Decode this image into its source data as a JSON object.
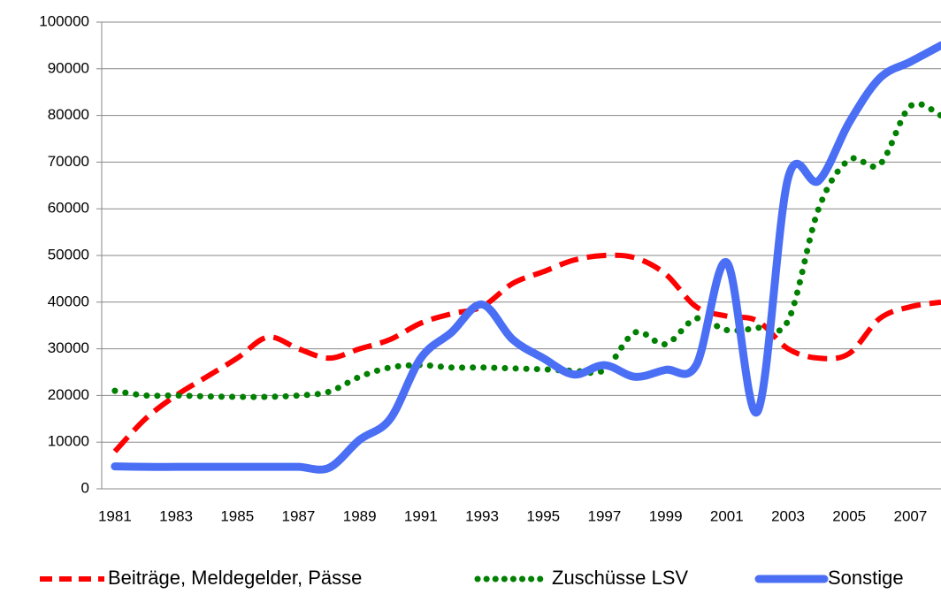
{
  "chart_data": {
    "type": "line",
    "x": [
      1981,
      1982,
      1983,
      1984,
      1985,
      1986,
      1987,
      1988,
      1989,
      1990,
      1991,
      1992,
      1993,
      1994,
      1995,
      1996,
      1997,
      1998,
      1999,
      2000,
      2001,
      2002,
      2003,
      2004,
      2005,
      2006,
      2007,
      2008
    ],
    "xlim": [
      1980.57,
      2008.0
    ],
    "xticks": [
      1981,
      1983,
      1985,
      1987,
      1989,
      1991,
      1993,
      1995,
      1997,
      1999,
      2001,
      2003,
      2005,
      2007
    ],
    "ylim": [
      0,
      100000
    ],
    "yticks": [
      0,
      10000,
      20000,
      30000,
      40000,
      50000,
      60000,
      70000,
      80000,
      90000,
      100000
    ],
    "grid": true,
    "legend": "bottom",
    "series": [
      {
        "name": "Beiträge, Meldegelder, Pässe",
        "color": "#ff0000",
        "style": "dashed",
        "values": [
          8000,
          15000,
          20000,
          24000,
          28000,
          32500,
          30000,
          28000,
          30000,
          32000,
          35500,
          37500,
          39000,
          44000,
          46500,
          49000,
          50000,
          49500,
          46000,
          39000,
          37000,
          36000,
          30000,
          28000,
          29000,
          36500,
          39000,
          40000
        ]
      },
      {
        "name": "Zuschüsse LSV",
        "color": "#008000",
        "style": "dotted",
        "values": [
          21000,
          20000,
          20000,
          19800,
          19700,
          19700,
          20000,
          20800,
          24000,
          26000,
          26500,
          26000,
          26000,
          25800,
          25600,
          25300,
          25500,
          33500,
          31000,
          36500,
          34000,
          34500,
          36000,
          60000,
          70500,
          69500,
          82000,
          80000
        ]
      },
      {
        "name": "Sonstige",
        "color": "#4a6ff5",
        "style": "solid",
        "values": [
          4800,
          4700,
          4700,
          4700,
          4700,
          4700,
          4700,
          4500,
          10500,
          15000,
          28000,
          33500,
          39500,
          32000,
          28000,
          24500,
          26500,
          24000,
          25500,
          26500,
          48500,
          16500,
          66500,
          66000,
          78500,
          88000,
          91500,
          95000
        ]
      }
    ]
  }
}
